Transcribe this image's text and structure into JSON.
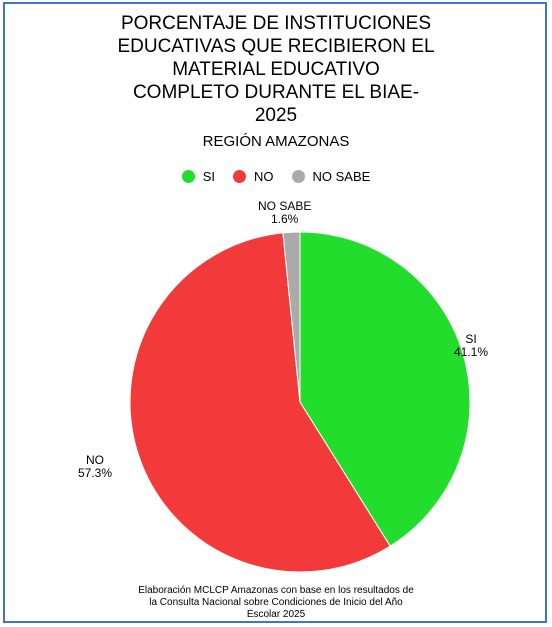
{
  "chart_data": {
    "type": "pie",
    "title": "PORCENTAJE DE INSTITUCIONES EDUCATIVAS QUE RECIBIERON EL MATERIAL EDUCATIVO COMPLETO DURANTE EL BIAE-2025",
    "title_lines": [
      "PORCENTAJE DE INSTITUCIONES",
      "EDUCATIVAS QUE RECIBIERON EL",
      "MATERIAL EDUCATIVO",
      "COMPLETO DURANTE EL BIAE-",
      "2025"
    ],
    "subtitle": "REGIÓN AMAZONAS",
    "legend": "top",
    "categories": [
      "SI",
      "NO",
      "NO SABE"
    ],
    "values": [
      41.1,
      57.3,
      1.6
    ],
    "value_labels": [
      "41.1%",
      "57.3%",
      "1.6%"
    ],
    "colors": [
      "#22dd2c",
      "#f23a3a",
      "#aaaaaa"
    ]
  },
  "footer": {
    "lines": [
      "Elaboración MCLCP Amazonas con base en los resultados de",
      "la Consulta Nacional sobre Condiciones de Inicio del Año",
      "Escolar 2025"
    ]
  }
}
